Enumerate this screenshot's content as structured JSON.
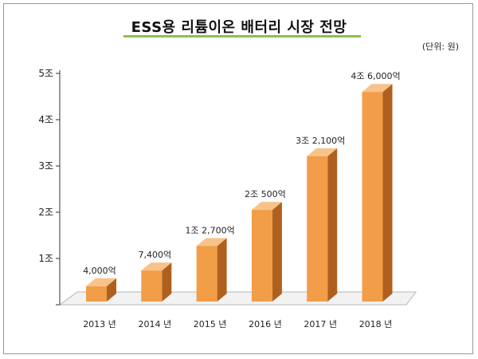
{
  "chart_data": {
    "type": "bar",
    "title": "ESS용 리튬이온 배터리 시장 전망",
    "unit_note": "(단위: 원)",
    "categories": [
      "2013 년",
      "2014 년",
      "2015 년",
      "2016 년",
      "2017 년",
      "2018 년"
    ],
    "values": [
      400000000000,
      740000000000,
      1270000000000,
      2050000000000,
      3210000000000,
      4600000000000
    ],
    "data_labels": [
      "4,000억",
      "7,400억",
      "1조 2,700억",
      "2조 500억",
      "3조 2,100억",
      "4조 6,000억"
    ],
    "ylim": [
      0,
      5000000000000
    ],
    "y_ticks": [
      {
        "value": 1000000000000,
        "label": "1조"
      },
      {
        "value": 2000000000000,
        "label": "2조"
      },
      {
        "value": 3000000000000,
        "label": "3조"
      },
      {
        "value": 4000000000000,
        "label": "4조"
      },
      {
        "value": 5000000000000,
        "label": "5조"
      }
    ],
    "xlabel": "",
    "ylabel": "",
    "grid": false,
    "legend": "none",
    "colors": {
      "bar_front": "#f29d47",
      "bar_side": "#b0601e",
      "bar_top": "#f7c38a",
      "floor": "#f2f2f2",
      "title_underline": "#8ec04a"
    }
  }
}
